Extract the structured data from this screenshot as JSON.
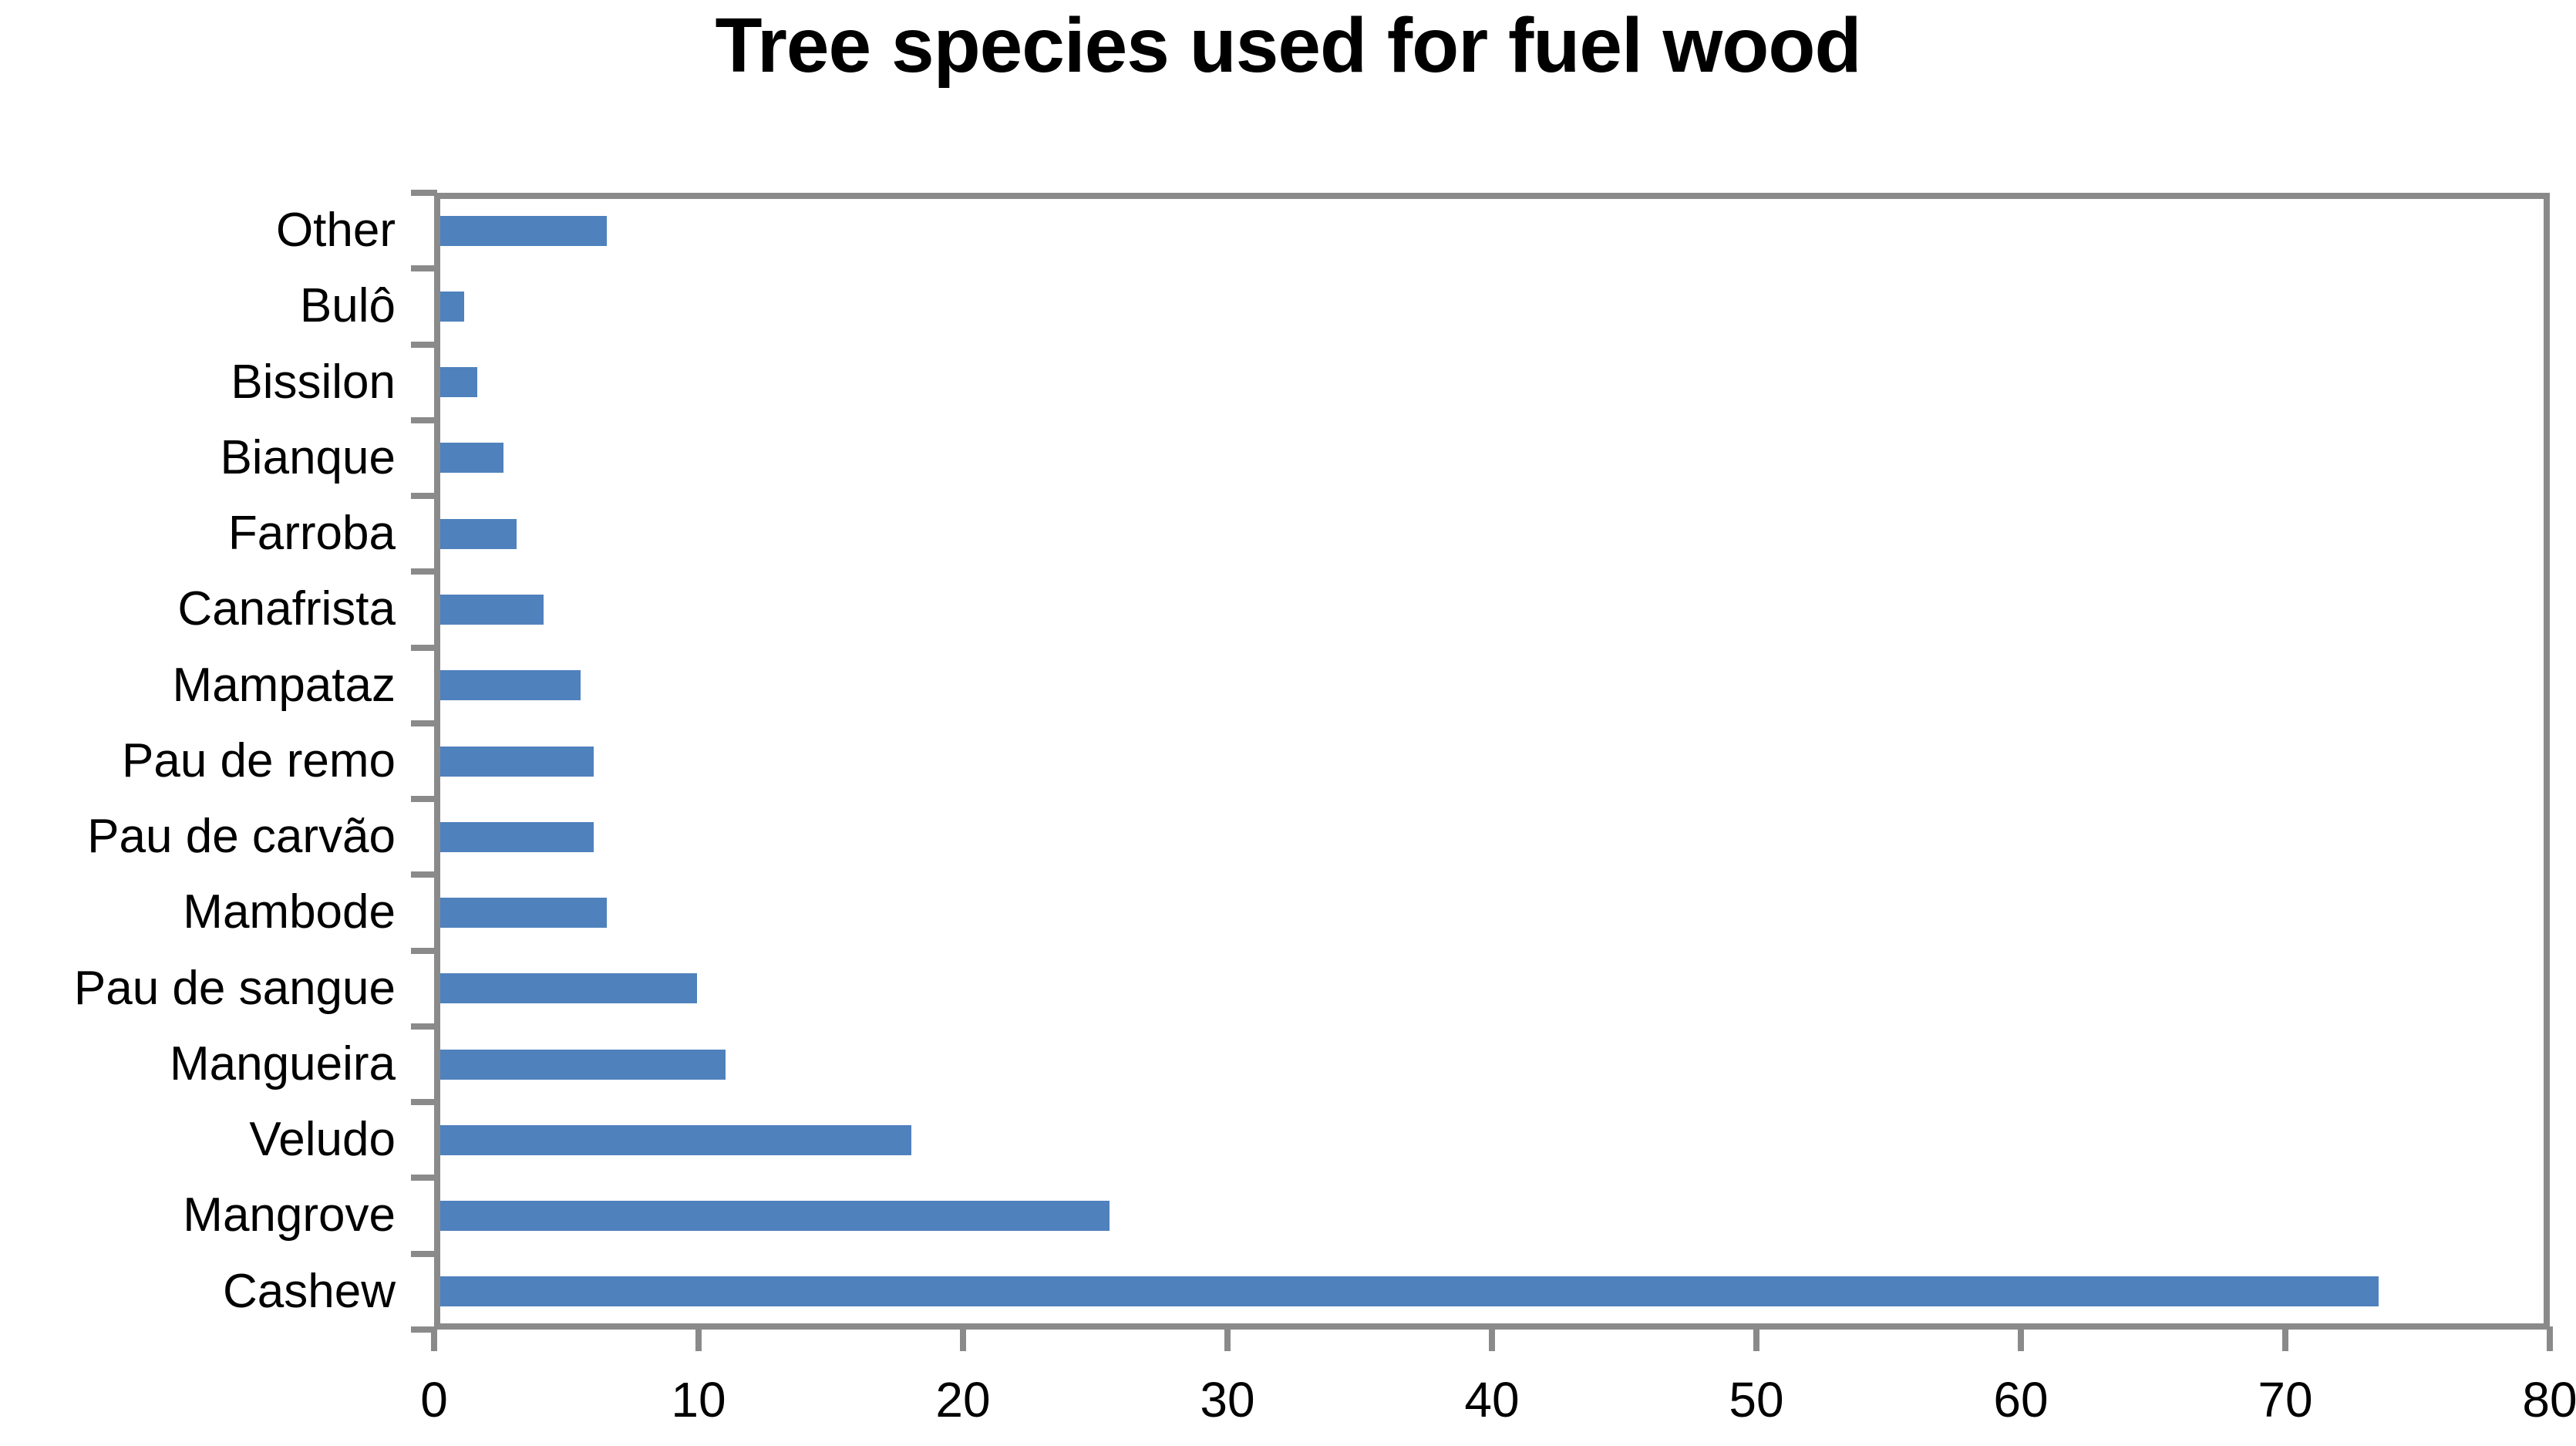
{
  "chart_data": {
    "type": "bar",
    "orientation": "horizontal",
    "title": "Tree species used for fuel wood",
    "categories": [
      "Other",
      "Bulô",
      "Bissilon",
      "Bianque",
      "Farroba",
      "Canafrista",
      "Mampataz",
      "Pau de remo",
      "Pau de carvão",
      "Mambode",
      "Pau de sangue",
      "Mangueira",
      "Veludo",
      "Mangrove",
      "Cashew"
    ],
    "values": [
      6.3,
      0.9,
      1.4,
      2.4,
      2.9,
      3.9,
      5.3,
      5.8,
      5.8,
      6.3,
      9.7,
      10.8,
      17.8,
      25.3,
      73.3
    ],
    "xlabel": "",
    "ylabel": "",
    "xlim": [
      0,
      80
    ],
    "xticks": [
      0,
      10,
      20,
      30,
      40,
      50,
      60,
      70,
      80
    ],
    "grid": false,
    "legend": false,
    "bar_color": "#4F81BD",
    "axis_color": "#8A8A8A",
    "text_color": "#000000",
    "background": "#FFFFFF"
  }
}
